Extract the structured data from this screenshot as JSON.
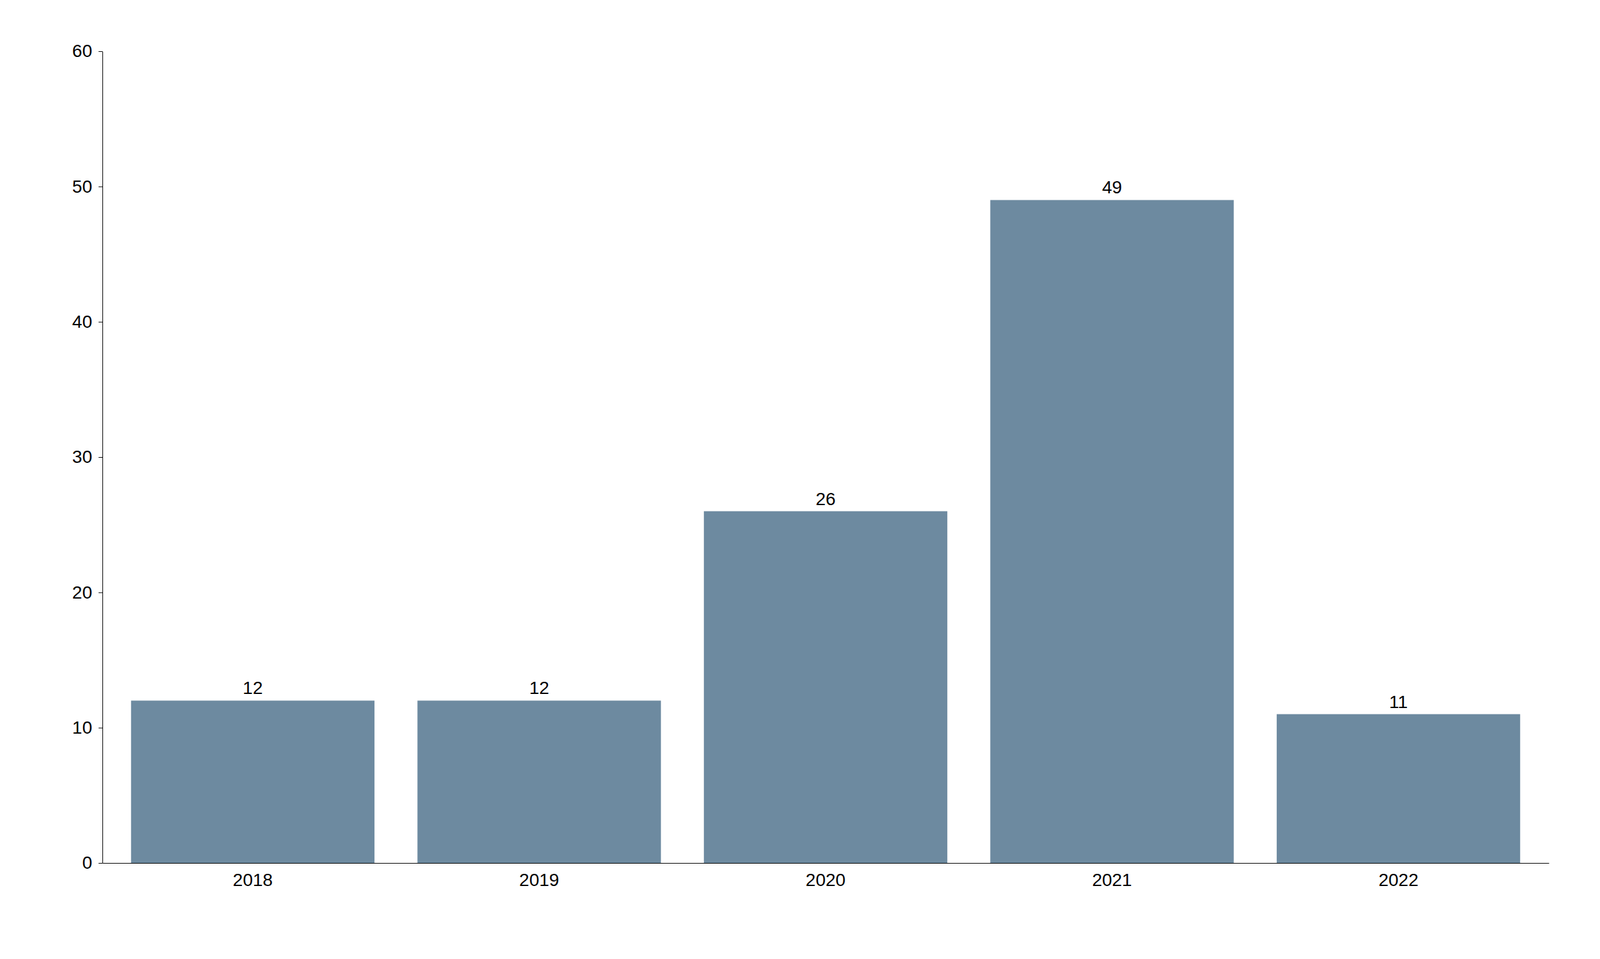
{
  "chart_data": {
    "type": "bar",
    "categories": [
      "2018",
      "2019",
      "2020",
      "2021",
      "2022"
    ],
    "values": [
      12,
      12,
      26,
      49,
      11
    ],
    "color": "#6d8aa0",
    "ylim": [
      0,
      60
    ],
    "yticks": [
      0,
      10,
      20,
      30,
      40,
      50,
      60
    ],
    "grid": false,
    "data_labels": true
  }
}
